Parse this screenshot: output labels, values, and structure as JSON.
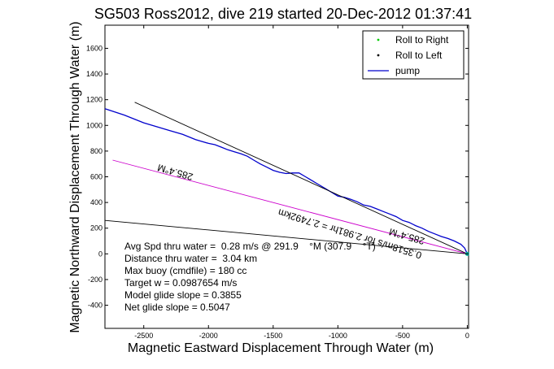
{
  "chart_data": {
    "type": "line",
    "title": "SG503 Ross2012, dive 219 started 20-Dec-2012 01:37:41",
    "xlabel": "Magnetic Eastward Displacement Through Water (m)",
    "ylabel": "Magnetic Northward Displacement Through Water (m)",
    "xlim": [
      -2800,
      10
    ],
    "ylim": [
      -580,
      1780
    ],
    "xticks": [
      -2500,
      -2000,
      -1500,
      -1000,
      -500,
      0
    ],
    "yticks": [
      -400,
      -200,
      0,
      200,
      400,
      600,
      800,
      1000,
      1200,
      1400,
      1600
    ],
    "grid": false,
    "legend": {
      "placement": "top-right",
      "entries": [
        {
          "label": "Roll to Right",
          "color": "#00cc00",
          "marker": "dot"
        },
        {
          "label": "Roll to Left",
          "color": "#000000",
          "marker": "dot"
        },
        {
          "label": "pump",
          "color": "#0000cc",
          "marker": "line"
        }
      ]
    },
    "series": [
      {
        "name": "pump",
        "color": "#0000cc",
        "x": [
          -2800,
          -2650,
          -2500,
          -2400,
          -2300,
          -2200,
          -2100,
          -2000,
          -1950,
          -1900,
          -1850,
          -1800,
          -1750,
          -1700,
          -1650,
          -1600,
          -1550,
          -1500,
          -1450,
          -1400,
          -1350,
          -1300,
          -1250,
          -1200,
          -1150,
          -1100,
          -1050,
          -1000,
          -950,
          -900,
          -850,
          -800,
          -750,
          -700,
          -650,
          -600,
          -550,
          -500,
          -450,
          -400,
          -350,
          -300,
          -250,
          -200,
          -150,
          -100,
          -50,
          -20,
          0
        ],
        "y": [
          1130,
          1080,
          1020,
          990,
          960,
          930,
          890,
          860,
          850,
          830,
          810,
          795,
          780,
          760,
          730,
          700,
          675,
          650,
          635,
          625,
          630,
          630,
          600,
          570,
          540,
          510,
          480,
          450,
          440,
          425,
          405,
          380,
          370,
          350,
          330,
          310,
          290,
          260,
          245,
          220,
          200,
          175,
          155,
          135,
          120,
          100,
          75,
          45,
          0
        ]
      },
      {
        "name": "",
        "color": "#000000",
        "x": [
          -2570,
          0
        ],
        "y": [
          1180,
          0
        ]
      },
      {
        "name": "",
        "color": "#cc00cc",
        "x": [
          -2740,
          0
        ],
        "y": [
          730,
          0
        ]
      },
      {
        "name": "",
        "color": "#000000",
        "x": [
          -2800,
          0
        ],
        "y": [
          260,
          0
        ]
      }
    ],
    "annotations": [
      {
        "text": "285.4°M",
        "x": -2250,
        "y": 660,
        "rotation": 196
      },
      {
        "text": "0.3518m/s for 2.981hr = 2.7492km",
        "x": -900,
        "y": 180,
        "rotation": 197
      },
      {
        "text": "285.4°M",
        "x": -460,
        "y": 160,
        "rotation": 196
      }
    ],
    "stats": [
      "Avg Spd thru water =  0.28 m/s @ 291.9    °M (307.9    °T)",
      "Distance thru water =  3.04 km",
      "Max buoy (cmdfile) = 180 cc",
      "Target w = 0.0987654 m/s",
      "Model glide slope = 0.3855",
      "Net glide slope = 0.5047"
    ]
  }
}
